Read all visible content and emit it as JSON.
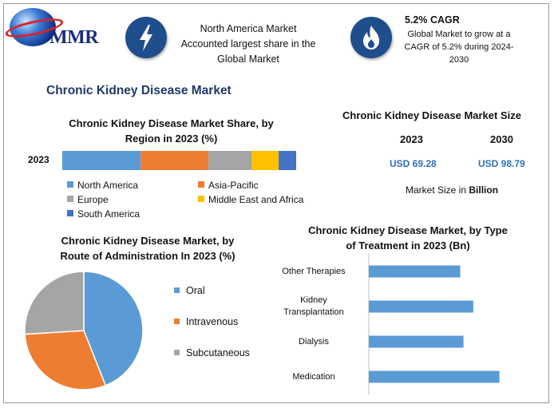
{
  "brand": {
    "logo_text": "MMR"
  },
  "header": {
    "region_text_1": "North America Market",
    "region_text_2": "Accounted largest share in the",
    "region_text_3": "Global Market",
    "cagr_title": "5.2% CAGR",
    "cagr_text_1": "Global Market to grow at a",
    "cagr_text_2": "CAGR of 5.2% during 2024-",
    "cagr_text_3": "2030",
    "icons": [
      "lightning-icon",
      "flame-icon"
    ]
  },
  "main_title": "Chronic Kidney Disease Market",
  "market_size": {
    "title": "Chronic Kidney Disease Market Size",
    "year_1": "2023",
    "year_2": "2030",
    "value_1": "USD 69.28",
    "value_2": "USD 98.79",
    "note_prefix": "Market Size in ",
    "note_unit": "Billion"
  },
  "chart_data": [
    {
      "type": "bar",
      "orientation": "horizontal-stacked",
      "title_line1": "Chronic Kidney Disease Market Share, by",
      "title_line2": "Region in 2023 (%)",
      "categories": [
        "2023"
      ],
      "series": [
        {
          "name": "North America",
          "values": [
            33.5
          ],
          "color": "#5b9bd5"
        },
        {
          "name": "Asia-Pacific",
          "values": [
            29
          ],
          "color": "#ed7d31"
        },
        {
          "name": "Europe",
          "values": [
            18.5
          ],
          "color": "#a5a5a5"
        },
        {
          "name": "Middle East and Africa",
          "values": [
            11.5
          ],
          "color": "#ffc000"
        },
        {
          "name": "South America",
          "values": [
            7.5
          ],
          "color": "#4472c4"
        }
      ],
      "legend_position": "bottom"
    },
    {
      "type": "pie",
      "title_line1": "Chronic Kidney Disease Market, by",
      "title_line2": "Route of Administration In 2023 (%)",
      "labels": [
        "Oral",
        "Intravenous",
        "Subcutaneous"
      ],
      "values": [
        44,
        30,
        26
      ],
      "colors": [
        "#5b9bd5",
        "#ed7d31",
        "#a5a5a5"
      ],
      "legend_position": "right"
    },
    {
      "type": "bar",
      "orientation": "horizontal",
      "title_line1": "Chronic Kidney Disease Market, by Type",
      "title_line2": "of Treatment in 2023 (Bn)",
      "categories": [
        "Other Therapies",
        "Kidney Transplantation",
        "Dialysis",
        "Medication"
      ],
      "category_lines": [
        [
          "Other Therapies"
        ],
        [
          "Kidney",
          "Transplantation"
        ],
        [
          "Dialysis"
        ],
        [
          "Medication"
        ]
      ],
      "values": [
        14,
        16,
        14.5,
        20
      ],
      "color": "#5b9bd5",
      "xlim": [
        0,
        22
      ]
    }
  ]
}
